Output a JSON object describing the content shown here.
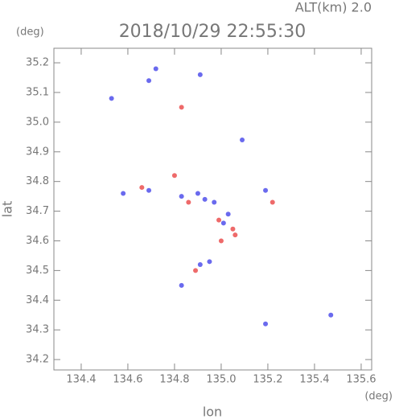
{
  "chart_data": {
    "type": "scatter",
    "title": "2018/10/29 22:55:30",
    "subtitle": "ALT(km) 2.0",
    "x_label": "lon",
    "y_label": "lat",
    "x_unit": "(deg)",
    "y_unit": "(deg)",
    "xlim": [
      134.283,
      135.645
    ],
    "ylim": [
      34.165,
      35.249
    ],
    "xticks": [
      134.4,
      134.6,
      134.8,
      {
        "value": 135.0,
        "label": "135.0"
      },
      135.2,
      135.4,
      135.6
    ],
    "yticks": [
      34.2,
      34.3,
      34.4,
      34.5,
      34.6,
      34.7,
      34.8,
      34.9,
      {
        "value": 35.0,
        "label": "35.0"
      },
      35.1,
      35.2
    ],
    "series": [
      {
        "color": "#6a6aee",
        "x": [
          134.69,
          134.72,
          134.53,
          135.09,
          134.9,
          134.83,
          134.69,
          134.97,
          135.03,
          134.91,
          134.95,
          135.19,
          135.47,
          135.19,
          134.83,
          134.58,
          134.91,
          134.93,
          135.01
        ],
        "y": [
          35.14,
          35.18,
          35.08,
          34.94,
          34.76,
          34.75,
          34.77,
          34.73,
          34.69,
          34.52,
          34.53,
          34.77,
          34.35,
          34.32,
          34.45,
          34.76,
          35.16,
          34.74,
          34.66
        ]
      },
      {
        "color": "#ee6a6a",
        "x": [
          134.83,
          134.8,
          134.66,
          134.86,
          135.05,
          135.0,
          135.22,
          134.89,
          134.99,
          135.06
        ],
        "y": [
          35.05,
          34.82,
          34.78,
          34.73,
          34.64,
          34.6,
          34.73,
          34.5,
          34.67,
          34.62
        ]
      }
    ]
  }
}
